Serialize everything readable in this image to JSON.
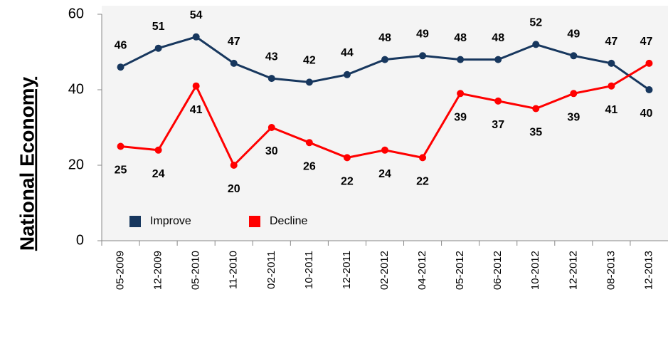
{
  "chart_data": {
    "type": "line",
    "y_label": "National Economy",
    "categories": [
      "05-2009",
      "12-2009",
      "05-2010",
      "11-2010",
      "02-2011",
      "10-2011",
      "12-2011",
      "02-2012",
      "04-2012",
      "05-2012",
      "06-2012",
      "10-2012",
      "12-2012",
      "08-2013",
      "12-2013"
    ],
    "series": [
      {
        "name": "Improve",
        "color": "#17375e",
        "values": [
          46,
          51,
          54,
          47,
          43,
          42,
          44,
          48,
          49,
          48,
          48,
          52,
          49,
          47,
          40
        ]
      },
      {
        "name": "Decline",
        "color": "#ff0000",
        "values": [
          25,
          24,
          41,
          20,
          30,
          26,
          22,
          24,
          22,
          39,
          37,
          35,
          39,
          41,
          47
        ]
      }
    ],
    "ylim": [
      0,
      60
    ],
    "yticks": [
      0,
      20,
      40,
      60
    ],
    "legend": "lower left"
  }
}
